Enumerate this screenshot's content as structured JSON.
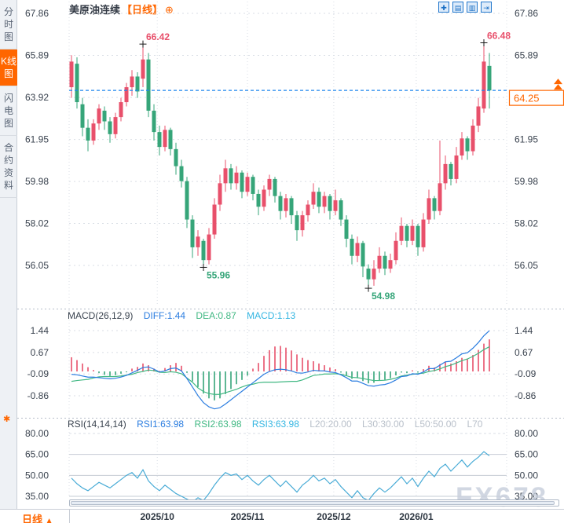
{
  "sidebar": {
    "items": [
      {
        "label": "分时图",
        "active": false
      },
      {
        "label": "K线图",
        "active": true
      },
      {
        "label": "闪电图",
        "active": false
      },
      {
        "label": "合约资料",
        "active": false
      }
    ]
  },
  "header": {
    "symbol": "美原油连续",
    "period_tag": "【日线】",
    "add_glyph": "⊕"
  },
  "toolbar": {
    "buttons": [
      {
        "name": "crosshair",
        "glyph": "✚"
      },
      {
        "name": "fit-x",
        "glyph": "▤"
      },
      {
        "name": "fit-y",
        "glyph": "▥"
      },
      {
        "name": "go-latest",
        "glyph": "⇥"
      }
    ]
  },
  "indicators": {
    "macd": {
      "title": "MACD(26,12,9)",
      "items": [
        {
          "text": "DIFF:1.44",
          "color": "#2b7de0"
        },
        {
          "text": "DEA:0.87",
          "color": "#41b883"
        },
        {
          "text": "MACD:1.13",
          "color": "#35b6e2"
        }
      ]
    },
    "rsi": {
      "title": "RSI(14,14,14)",
      "items": [
        {
          "text": "RSI1:63.98",
          "color": "#2b7de0"
        },
        {
          "text": "RSI2:63.98",
          "color": "#41b883"
        },
        {
          "text": "RSI3:63.98",
          "color": "#35b6e2"
        },
        {
          "text": "L20:20.00",
          "color": "#b9c0ca"
        },
        {
          "text": "L30:30.00",
          "color": "#b9c0ca"
        },
        {
          "text": "L50:50.00",
          "color": "#b9c0ca"
        },
        {
          "text": "L70",
          "color": "#b9c0ca"
        }
      ]
    },
    "settings_glyph": "✱"
  },
  "bottom": {
    "period": "日线",
    "arrow": "▲"
  },
  "watermark": "FX678",
  "colors": {
    "up": "#e8506b",
    "down": "#36a579",
    "diff_line": "#2b7de0",
    "dea_line": "#41b883",
    "rsi_line": "#48abd6",
    "accent": "#ff6600",
    "current_price_line": "#1d86ee",
    "axis_text": "#39424e",
    "grid": "#d9dee5",
    "rsi_grid": "#c6ccd4",
    "marker": "#1a1a1a"
  },
  "chart_data": [
    {
      "type": "candlestick",
      "title": "美原油连续 日线",
      "y_ticks": [
        67.86,
        65.89,
        63.92,
        61.95,
        59.98,
        58.02,
        56.05
      ],
      "ylim": [
        54.3,
        68.5
      ],
      "current_price": 64.25,
      "current_price_label": "64.25",
      "x_labels": [
        {
          "text": "2025/10",
          "i": 15.6
        },
        {
          "text": "2025/11",
          "i": 32
        },
        {
          "text": "2025/12",
          "i": 47.7
        },
        {
          "text": "2026/01",
          "i": 62.7
        }
      ],
      "annotations": [
        {
          "text": "66.42",
          "i": 13,
          "price": 66.42,
          "color": "#e8506b",
          "pos": "above"
        },
        {
          "text": "66.48",
          "i": 75,
          "price": 66.48,
          "color": "#e8506b",
          "pos": "above"
        },
        {
          "text": "55.96",
          "i": 24,
          "price": 55.96,
          "color": "#36a579",
          "pos": "below"
        },
        {
          "text": "54.98",
          "i": 54,
          "price": 54.98,
          "color": "#36a579",
          "pos": "below"
        }
      ],
      "candles": [
        [
          64.4,
          65.9,
          63.9,
          65.6
        ],
        [
          65.5,
          65.8,
          63.4,
          63.7
        ],
        [
          63.6,
          63.9,
          62.1,
          62.5
        ],
        [
          62.5,
          62.9,
          61.4,
          61.9
        ],
        [
          61.9,
          62.9,
          61.7,
          62.7
        ],
        [
          62.7,
          63.6,
          62.4,
          63.4
        ],
        [
          63.3,
          63.5,
          62.4,
          62.8
        ],
        [
          62.8,
          63.0,
          61.8,
          62.2
        ],
        [
          62.2,
          63.2,
          62.0,
          63.0
        ],
        [
          63.0,
          63.9,
          62.8,
          63.7
        ],
        [
          63.7,
          64.6,
          63.5,
          64.4
        ],
        [
          64.4,
          65.2,
          64.0,
          64.9
        ],
        [
          64.9,
          65.1,
          63.9,
          64.2
        ],
        [
          64.8,
          66.42,
          64.4,
          65.7
        ],
        [
          65.7,
          66.0,
          63.0,
          63.3
        ],
        [
          63.3,
          63.6,
          61.9,
          62.3
        ],
        [
          62.3,
          62.6,
          61.2,
          61.6
        ],
        [
          61.6,
          62.6,
          61.4,
          62.4
        ],
        [
          62.4,
          62.5,
          61.2,
          61.5
        ],
        [
          61.5,
          61.8,
          60.3,
          60.7
        ],
        [
          60.7,
          61.0,
          59.7,
          60.0
        ],
        [
          60.0,
          60.2,
          57.8,
          58.2
        ],
        [
          58.2,
          58.4,
          56.4,
          56.9
        ],
        [
          56.9,
          57.7,
          56.5,
          57.4
        ],
        [
          57.2,
          57.3,
          55.96,
          56.3
        ],
        [
          56.3,
          57.8,
          56.1,
          57.5
        ],
        [
          57.5,
          59.2,
          57.3,
          58.9
        ],
        [
          58.9,
          60.3,
          58.6,
          59.9
        ],
        [
          59.9,
          61.0,
          59.5,
          60.6
        ],
        [
          60.6,
          60.8,
          59.6,
          59.9
        ],
        [
          59.9,
          60.7,
          59.6,
          60.4
        ],
        [
          60.4,
          60.5,
          59.2,
          59.5
        ],
        [
          59.5,
          60.4,
          59.3,
          60.2
        ],
        [
          60.2,
          60.3,
          59.1,
          59.4
        ],
        [
          59.4,
          59.6,
          58.4,
          58.8
        ],
        [
          58.8,
          59.8,
          58.6,
          59.6
        ],
        [
          59.6,
          60.3,
          59.3,
          60.1
        ],
        [
          60.1,
          60.2,
          59.0,
          59.3
        ],
        [
          59.3,
          59.5,
          58.2,
          58.6
        ],
        [
          58.6,
          59.4,
          58.3,
          59.2
        ],
        [
          59.2,
          59.3,
          58.0,
          58.4
        ],
        [
          58.4,
          58.6,
          57.2,
          57.7
        ],
        [
          57.7,
          58.6,
          57.4,
          58.4
        ],
        [
          58.4,
          59.1,
          58.1,
          58.9
        ],
        [
          58.9,
          59.9,
          58.7,
          59.5
        ],
        [
          59.5,
          59.7,
          58.5,
          58.8
        ],
        [
          58.8,
          59.5,
          58.5,
          59.3
        ],
        [
          59.3,
          59.4,
          58.2,
          58.6
        ],
        [
          58.6,
          59.6,
          58.4,
          59.1
        ],
        [
          59.1,
          59.2,
          57.9,
          58.2
        ],
        [
          58.2,
          58.4,
          56.9,
          57.3
        ],
        [
          57.3,
          57.5,
          56.1,
          56.5
        ],
        [
          56.5,
          57.4,
          56.2,
          57.1
        ],
        [
          57.1,
          57.2,
          55.5,
          56.0
        ],
        [
          55.9,
          56.1,
          54.98,
          55.4
        ],
        [
          55.4,
          56.3,
          55.1,
          55.9
        ],
        [
          55.9,
          56.9,
          55.7,
          56.5
        ],
        [
          56.5,
          56.7,
          55.6,
          55.9
        ],
        [
          55.9,
          56.6,
          55.7,
          56.3
        ],
        [
          56.3,
          57.6,
          56.1,
          57.2
        ],
        [
          57.2,
          58.3,
          57.0,
          57.9
        ],
        [
          57.9,
          58.0,
          56.9,
          57.2
        ],
        [
          57.2,
          58.2,
          57.0,
          57.9
        ],
        [
          57.9,
          58.0,
          56.5,
          56.9
        ],
        [
          56.9,
          58.5,
          56.7,
          58.2
        ],
        [
          58.2,
          59.6,
          58.0,
          59.2
        ],
        [
          59.2,
          59.3,
          58.2,
          58.6
        ],
        [
          58.6,
          61.9,
          58.4,
          59.9
        ],
        [
          59.9,
          61.2,
          59.6,
          60.8
        ],
        [
          60.8,
          60.9,
          59.8,
          60.1
        ],
        [
          60.1,
          61.6,
          59.9,
          61.2
        ],
        [
          61.2,
          62.3,
          61.0,
          62.0
        ],
        [
          62.0,
          62.1,
          61.0,
          61.4
        ],
        [
          61.4,
          62.9,
          61.2,
          62.6
        ],
        [
          62.6,
          63.9,
          62.3,
          63.5
        ],
        [
          63.4,
          66.48,
          63.2,
          65.6
        ],
        [
          65.4,
          66.0,
          63.4,
          64.25
        ]
      ]
    },
    {
      "type": "macd",
      "params": "(26,12,9)",
      "y_ticks": [
        1.44,
        0.67,
        -0.09,
        -0.86
      ],
      "histogram": [
        0.5,
        0.4,
        0.28,
        0.15,
        0.05,
        -0.06,
        -0.12,
        -0.16,
        -0.13,
        -0.08,
        -0.03,
        0.1,
        0.16,
        0.28,
        0.22,
        0.1,
        0.02,
        0.12,
        0.22,
        0.3,
        0.2,
        -0.05,
        -0.35,
        -0.55,
        -0.78,
        -0.95,
        -1.02,
        -0.95,
        -0.8,
        -0.62,
        -0.45,
        -0.3,
        -0.15,
        0.1,
        0.3,
        0.55,
        0.75,
        0.88,
        0.9,
        0.84,
        0.74,
        0.6,
        0.48,
        0.4,
        0.36,
        0.28,
        0.22,
        0.14,
        0.08,
        -0.04,
        -0.14,
        -0.26,
        -0.24,
        -0.34,
        -0.42,
        -0.4,
        -0.32,
        -0.3,
        -0.24,
        -0.14,
        -0.04,
        -0.06,
        0.04,
        -0.04,
        0.08,
        0.2,
        0.14,
        0.26,
        0.34,
        0.28,
        0.36,
        0.48,
        0.44,
        0.58,
        0.76,
        0.98,
        1.13
      ],
      "diff_line": [
        -0.1,
        -0.12,
        -0.16,
        -0.2,
        -0.2,
        -0.22,
        -0.24,
        -0.26,
        -0.24,
        -0.2,
        -0.14,
        -0.05,
        0.04,
        0.14,
        0.16,
        0.08,
        -0.02,
        0.02,
        0.1,
        0.12,
        0.02,
        -0.25,
        -0.55,
        -0.85,
        -1.1,
        -1.25,
        -1.32,
        -1.28,
        -1.15,
        -1.0,
        -0.85,
        -0.7,
        -0.55,
        -0.4,
        -0.25,
        -0.1,
        0.0,
        0.06,
        0.08,
        0.06,
        0.02,
        -0.05,
        -0.06,
        -0.02,
        0.04,
        0.02,
        0.02,
        -0.02,
        -0.04,
        -0.12,
        -0.22,
        -0.34,
        -0.34,
        -0.42,
        -0.5,
        -0.52,
        -0.48,
        -0.46,
        -0.4,
        -0.3,
        -0.18,
        -0.16,
        -0.08,
        -0.1,
        -0.02,
        0.1,
        0.1,
        0.22,
        0.34,
        0.36,
        0.48,
        0.62,
        0.66,
        0.82,
        1.02,
        1.26,
        1.44
      ],
      "dea_line": [
        -0.35,
        -0.32,
        -0.3,
        -0.28,
        -0.23,
        -0.19,
        -0.18,
        -0.18,
        -0.18,
        -0.16,
        -0.13,
        -0.1,
        -0.04,
        0.0,
        0.05,
        0.03,
        -0.03,
        -0.04,
        -0.01,
        -0.03,
        -0.08,
        -0.23,
        -0.38,
        -0.58,
        -0.71,
        -0.78,
        -0.81,
        -0.81,
        -0.75,
        -0.69,
        -0.63,
        -0.55,
        -0.48,
        -0.45,
        -0.4,
        -0.38,
        -0.38,
        -0.38,
        -0.37,
        -0.36,
        -0.35,
        -0.35,
        -0.3,
        -0.22,
        -0.14,
        -0.12,
        -0.09,
        -0.09,
        -0.08,
        -0.1,
        -0.15,
        -0.21,
        -0.22,
        -0.25,
        -0.29,
        -0.32,
        -0.32,
        -0.31,
        -0.28,
        -0.23,
        -0.16,
        -0.13,
        -0.1,
        -0.08,
        -0.06,
        0.0,
        0.03,
        0.09,
        0.17,
        0.22,
        0.3,
        0.38,
        0.44,
        0.53,
        0.64,
        0.77,
        0.87
      ]
    },
    {
      "type": "rsi",
      "params": "(14,14,14)",
      "y_ticks": [
        80,
        65,
        50,
        35
      ],
      "levels": {
        "solid": [
          65,
          50,
          35
        ],
        "dashed": [
          80
        ]
      },
      "values": [
        48,
        44,
        41,
        39,
        42,
        45,
        43,
        41,
        44,
        47,
        50,
        52,
        48,
        54,
        46,
        42,
        39,
        43,
        40,
        37,
        35,
        33,
        31,
        34,
        32,
        37,
        43,
        48,
        52,
        50,
        51,
        47,
        50,
        46,
        43,
        47,
        50,
        46,
        42,
        46,
        42,
        38,
        43,
        46,
        50,
        46,
        48,
        44,
        47,
        42,
        38,
        34,
        39,
        34,
        32,
        37,
        41,
        38,
        41,
        45,
        49,
        44,
        48,
        42,
        48,
        53,
        49,
        55,
        58,
        53,
        57,
        61,
        56,
        60,
        63,
        67,
        64
      ]
    }
  ]
}
